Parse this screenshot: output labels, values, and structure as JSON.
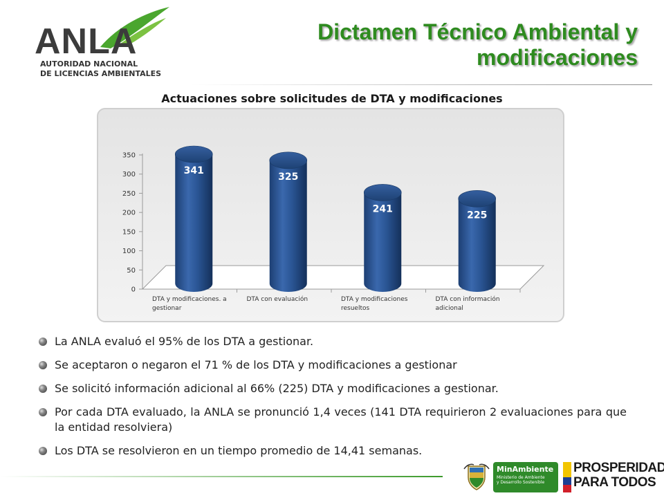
{
  "header": {
    "logo_text": "ANLA",
    "logo_sub1": "AUTORIDAD NACIONAL",
    "logo_sub2": "DE LICENCIAS AMBIENTALES",
    "title_line1": "Dictamen Técnico Ambiental y",
    "title_line2": "modificaciones"
  },
  "chart_data": {
    "type": "bar",
    "title": "Actuaciones sobre solicitudes de DTA y modificaciones",
    "categories": [
      [
        "DTA y modificaciones. a",
        "gestionar"
      ],
      [
        "DTA con evaluación"
      ],
      [
        "DTA y modificaciones",
        "resueltos"
      ],
      [
        "DTA con información",
        "adicional"
      ]
    ],
    "values": [
      341,
      325,
      241,
      225
    ],
    "data_labels": [
      "341",
      "325",
      "241",
      "225"
    ],
    "yticks": [
      "0",
      "50",
      "100",
      "150",
      "200",
      "250",
      "300",
      "350"
    ],
    "ylim": [
      0,
      350
    ],
    "style": "3d-cylinder",
    "bar_color": "#2a5594",
    "legend": "none"
  },
  "bullets": [
    "La ANLA evaluó el 95% de los DTA a gestionar.",
    "Se aceptaron o negaron el 71 % de los DTA y modificaciones a gestionar",
    "Se solicitó información adicional al 66% (225) DTA y modificaciones a gestionar.",
    "Por cada DTA evaluado, la ANLA se pronunció 1,4 veces (141 DTA requirieron 2 evaluaciones para que la entidad resolviera)",
    "Los DTA se resolvieron en un tiempo promedio de 14,41 semanas."
  ],
  "footer": {
    "minambiente_title": "MinAmbiente",
    "minambiente_sub1": "Ministerio de Ambiente",
    "minambiente_sub2": "y Desarrollo Sostenible",
    "prosperidad_line1": "PROSPERIDAD",
    "prosperidad_line2": "PARA TODOS"
  },
  "colors": {
    "title_green": "#2e8b1f",
    "bar_blue": "#2a5594"
  },
  "icons": [
    "leaf-swoosh-icon",
    "coat-of-arms-icon",
    "colombia-flag-icon",
    "bullet-icon"
  ]
}
